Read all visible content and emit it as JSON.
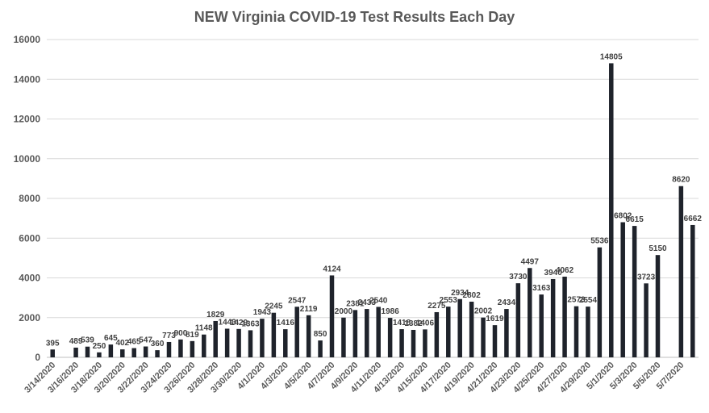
{
  "chart_data": {
    "type": "bar",
    "title": "NEW Virginia COVID-19 Test Results Each Day",
    "ylim": [
      0,
      16000
    ],
    "yticks": [
      0,
      2000,
      4000,
      6000,
      8000,
      10000,
      12000,
      14000,
      16000
    ],
    "grid": true,
    "legend": "none",
    "bar_color": "#1f232b",
    "categories": [
      "3/14/2020",
      "3/15/2020",
      "3/16/2020",
      "3/17/2020",
      "3/18/2020",
      "3/19/2020",
      "3/20/2020",
      "3/21/2020",
      "3/22/2020",
      "3/23/2020",
      "3/24/2020",
      "3/25/2020",
      "3/26/2020",
      "3/27/2020",
      "3/28/2020",
      "3/29/2020",
      "3/30/2020",
      "3/31/2020",
      "4/1/2020",
      "4/2/2020",
      "4/3/2020",
      "4/4/2020",
      "4/5/2020",
      "4/6/2020",
      "4/7/2020",
      "4/8/2020",
      "4/9/2020",
      "4/10/2020",
      "4/11/2020",
      "4/12/2020",
      "4/13/2020",
      "4/14/2020",
      "4/15/2020",
      "4/16/2020",
      "4/17/2020",
      "4/18/2020",
      "4/19/2020",
      "4/20/2020",
      "4/21/2020",
      "4/22/2020",
      "4/23/2020",
      "4/24/2020",
      "4/25/2020",
      "4/26/2020",
      "4/27/2020",
      "4/28/2020",
      "4/29/2020",
      "4/30/2020",
      "5/1/2020",
      "5/2/2020",
      "5/3/2020",
      "5/4/2020",
      "5/5/2020",
      "5/6/2020",
      "5/7/2020",
      "5/8/2020"
    ],
    "values": [
      395,
      null,
      489,
      539,
      250,
      645,
      402,
      465,
      547,
      360,
      773,
      900,
      819,
      1148,
      1829,
      1443,
      1429,
      1363,
      1943,
      2245,
      1416,
      2547,
      2119,
      850,
      4124,
      2000,
      2381,
      2433,
      2540,
      1986,
      1418,
      1382,
      1406,
      2275,
      2553,
      2934,
      2802,
      2002,
      1619,
      2434,
      3730,
      4497,
      3163,
      3940,
      4062,
      2573,
      2554,
      5536,
      14805,
      6802,
      6615,
      3723,
      5150,
      null,
      8620,
      6662
    ],
    "labels": [
      "395",
      "",
      "489",
      "539",
      "250",
      "645",
      "402",
      "465",
      "547",
      "360",
      "773",
      "900",
      "819",
      "1148",
      "1829",
      "1443",
      "1429",
      "1363",
      "1943",
      "2245",
      "1416",
      "2547",
      "2119",
      "850",
      "4124",
      "2000",
      "2381",
      "2433",
      "2540",
      "1986",
      "1418",
      "1382",
      "1406",
      "2275",
      "2553",
      "2934",
      "2802",
      "2002",
      "1619",
      "2434",
      "3730",
      "4497",
      "3163",
      "3940",
      "4062",
      "2573",
      "2554",
      "5536",
      "14805",
      "6802",
      "6615",
      "3723",
      "5150",
      "",
      "8620",
      "6662"
    ]
  }
}
